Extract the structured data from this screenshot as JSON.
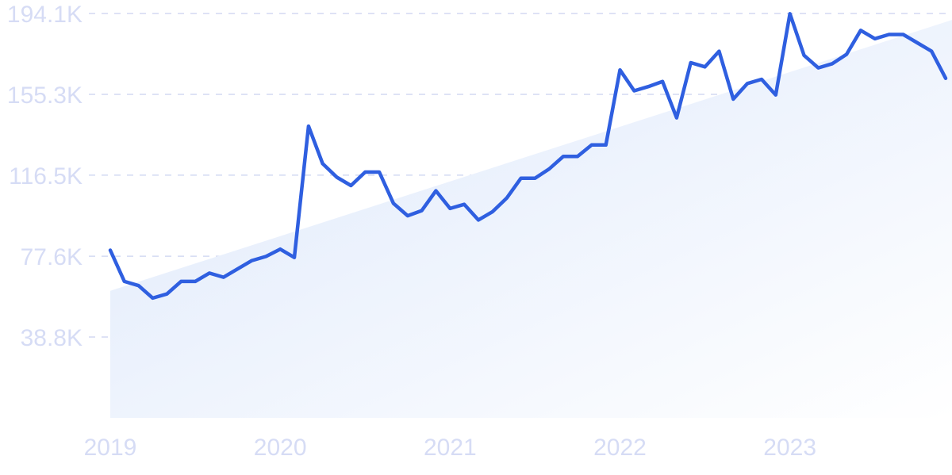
{
  "chart_data": {
    "type": "line",
    "title": "",
    "xlabel": "",
    "ylabel": "",
    "x_ticks": [
      "2019",
      "2020",
      "2021",
      "2022",
      "2023"
    ],
    "y_ticks": [
      "38.8K",
      "77.6K",
      "116.5K",
      "155.3K",
      "194.1K"
    ],
    "ylim": [
      0,
      194100
    ],
    "xlim": [
      "2019-01",
      "2023-12"
    ],
    "grid": "horizontal-dashed",
    "trend_area": {
      "start": 61000,
      "end": 191000
    },
    "series": [
      {
        "color": "#2f5fe0",
        "x": [
          "2019-01",
          "2019-02",
          "2019-03",
          "2019-04",
          "2019-05",
          "2019-06",
          "2019-07",
          "2019-08",
          "2019-09",
          "2019-10",
          "2019-11",
          "2019-12",
          "2020-01",
          "2020-02",
          "2020-03",
          "2020-04",
          "2020-05",
          "2020-06",
          "2020-07",
          "2020-08",
          "2020-09",
          "2020-10",
          "2020-11",
          "2020-12",
          "2021-01",
          "2021-02",
          "2021-03",
          "2021-04",
          "2021-05",
          "2021-06",
          "2021-07",
          "2021-08",
          "2021-09",
          "2021-10",
          "2021-11",
          "2021-12",
          "2022-01",
          "2022-02",
          "2022-03",
          "2022-04",
          "2022-05",
          "2022-06",
          "2022-07",
          "2022-08",
          "2022-09",
          "2022-10",
          "2022-11",
          "2022-12",
          "2023-01",
          "2023-02",
          "2023-03",
          "2023-04",
          "2023-05",
          "2023-06",
          "2023-07",
          "2023-08",
          "2023-09",
          "2023-10",
          "2023-11",
          "2023-12"
        ],
        "values": [
          80500,
          65500,
          63500,
          57500,
          59500,
          65500,
          65500,
          69500,
          67500,
          71500,
          75500,
          77500,
          81000,
          77000,
          140000,
          122000,
          115500,
          111500,
          118000,
          118000,
          103000,
          97000,
          99500,
          109000,
          100500,
          102500,
          95000,
          99000,
          105500,
          115000,
          115000,
          119500,
          125500,
          125500,
          131000,
          131000,
          167000,
          157000,
          159000,
          161500,
          144000,
          170500,
          168500,
          176000,
          153000,
          160500,
          162500,
          155000,
          194000,
          174000,
          168000,
          170000,
          174500,
          186000,
          182000,
          184000,
          184000,
          180000,
          176000,
          163000
        ]
      }
    ]
  }
}
